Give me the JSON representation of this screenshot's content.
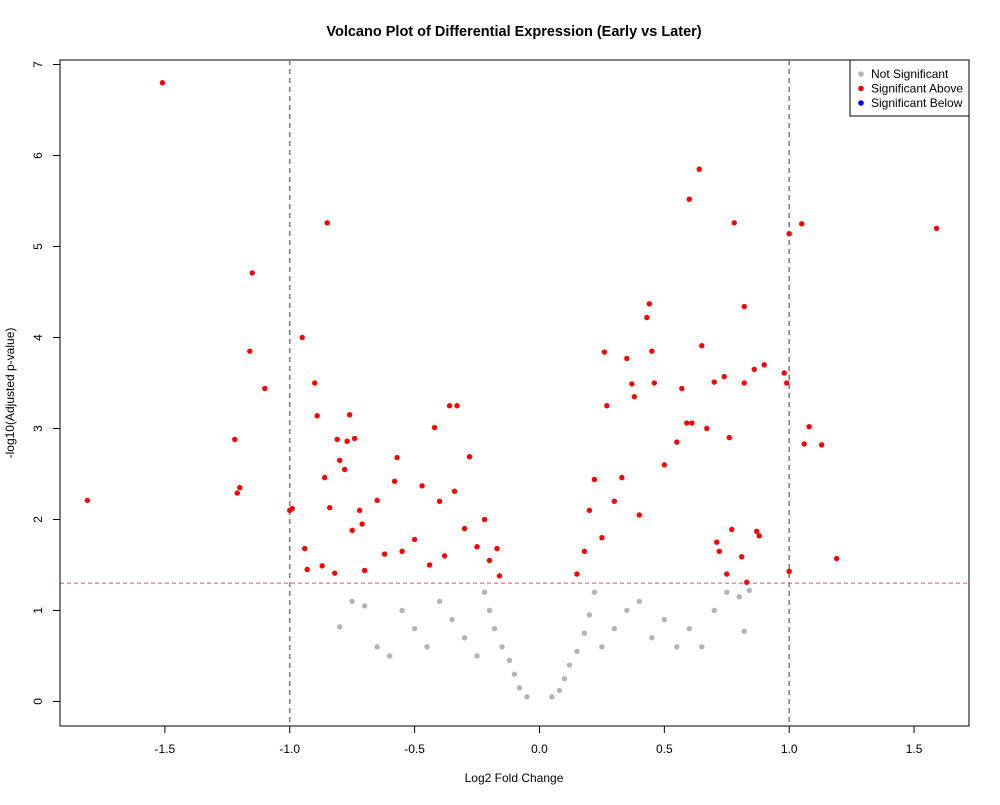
{
  "chart_data": {
    "type": "scatter",
    "title": "Volcano Plot of Differential Expression (Early vs Later)",
    "xlabel": "Log2 Fold Change",
    "ylabel": "-log10(Adjusted p-value)",
    "xlim": [
      -1.92,
      1.72
    ],
    "ylim": [
      -0.27,
      7.05
    ],
    "x_ticks": [
      -1.5,
      -1.0,
      -0.5,
      0.0,
      0.5,
      1.0,
      1.5
    ],
    "x_tick_labels": [
      "-1.5",
      "-1.0",
      "-0.5",
      "0.0",
      "0.5",
      "1.0",
      "1.5"
    ],
    "y_ticks": [
      0,
      1,
      2,
      3,
      4,
      5,
      6,
      7
    ],
    "y_tick_labels": [
      "0",
      "1",
      "2",
      "3",
      "4",
      "5",
      "6",
      "7"
    ],
    "grid": false,
    "legend_position": "top-right",
    "reference_lines": {
      "vertical": [
        -1.0,
        1.0
      ],
      "horizontal": [
        1.3
      ],
      "vertical_color": "#808080",
      "horizontal_color": "#e05555"
    },
    "series": [
      {
        "name": "Not Significant",
        "color": "#b3b3b3",
        "points": [
          [
            -0.05,
            0.05
          ],
          [
            0.05,
            0.05
          ],
          [
            -0.08,
            0.15
          ],
          [
            0.08,
            0.12
          ],
          [
            -0.1,
            0.3
          ],
          [
            0.1,
            0.25
          ],
          [
            -0.12,
            0.45
          ],
          [
            0.12,
            0.4
          ],
          [
            -0.15,
            0.6
          ],
          [
            0.15,
            0.55
          ],
          [
            -0.18,
            0.8
          ],
          [
            0.18,
            0.75
          ],
          [
            -0.2,
            1.0
          ],
          [
            0.2,
            0.95
          ],
          [
            -0.22,
            1.2
          ],
          [
            0.22,
            1.2
          ],
          [
            -0.25,
            0.5
          ],
          [
            0.25,
            0.6
          ],
          [
            -0.3,
            0.7
          ],
          [
            0.3,
            0.8
          ],
          [
            -0.35,
            0.9
          ],
          [
            0.35,
            1.0
          ],
          [
            -0.4,
            1.1
          ],
          [
            0.4,
            1.1
          ],
          [
            -0.45,
            0.6
          ],
          [
            0.45,
            0.7
          ],
          [
            -0.5,
            0.8
          ],
          [
            0.5,
            0.9
          ],
          [
            -0.55,
            1.0
          ],
          [
            0.55,
            0.6
          ],
          [
            -0.6,
            0.5
          ],
          [
            0.6,
            0.8
          ],
          [
            -0.65,
            0.6
          ],
          [
            0.65,
            0.6
          ],
          [
            -0.7,
            1.05
          ],
          [
            0.7,
            1.0
          ],
          [
            -0.75,
            1.1
          ],
          [
            0.75,
            1.2
          ],
          [
            -0.8,
            0.82
          ],
          [
            0.8,
            1.15
          ],
          [
            0.82,
            0.77
          ],
          [
            0.84,
            1.22
          ]
        ]
      },
      {
        "name": "Significant Above",
        "color": "#ff0000",
        "points": [
          [
            -1.81,
            2.21
          ],
          [
            -1.51,
            6.8
          ],
          [
            -1.22,
            2.88
          ],
          [
            -1.21,
            2.29
          ],
          [
            -1.2,
            2.35
          ],
          [
            -1.16,
            3.85
          ],
          [
            -1.15,
            4.71
          ],
          [
            -1.1,
            3.44
          ],
          [
            -1.0,
            2.1
          ],
          [
            -0.99,
            2.12
          ],
          [
            -0.95,
            4.0
          ],
          [
            -0.94,
            1.68
          ],
          [
            -0.93,
            1.45
          ],
          [
            -0.9,
            3.5
          ],
          [
            -0.89,
            3.14
          ],
          [
            -0.87,
            1.49
          ],
          [
            -0.86,
            2.46
          ],
          [
            -0.85,
            5.26
          ],
          [
            -0.84,
            2.13
          ],
          [
            -0.82,
            1.41
          ],
          [
            -0.81,
            2.88
          ],
          [
            -0.8,
            2.65
          ],
          [
            -0.78,
            2.55
          ],
          [
            -0.77,
            2.86
          ],
          [
            -0.76,
            3.15
          ],
          [
            -0.75,
            1.88
          ],
          [
            -0.74,
            2.89
          ],
          [
            -0.72,
            2.1
          ],
          [
            -0.71,
            1.95
          ],
          [
            -0.7,
            1.44
          ],
          [
            -0.65,
            2.21
          ],
          [
            -0.62,
            1.62
          ],
          [
            -0.58,
            2.42
          ],
          [
            -0.57,
            2.68
          ],
          [
            -0.55,
            1.65
          ],
          [
            -0.5,
            1.78
          ],
          [
            -0.47,
            2.37
          ],
          [
            -0.44,
            1.5
          ],
          [
            -0.42,
            3.01
          ],
          [
            -0.4,
            2.2
          ],
          [
            -0.38,
            1.6
          ],
          [
            -0.36,
            3.25
          ],
          [
            -0.34,
            2.31
          ],
          [
            -0.33,
            3.25
          ],
          [
            -0.3,
            1.9
          ],
          [
            -0.28,
            2.69
          ],
          [
            -0.25,
            1.7
          ],
          [
            -0.22,
            2.0
          ],
          [
            -0.2,
            1.55
          ],
          [
            -0.17,
            1.68
          ],
          [
            -0.16,
            1.38
          ],
          [
            0.15,
            1.4
          ],
          [
            0.18,
            1.65
          ],
          [
            0.2,
            2.1
          ],
          [
            0.22,
            2.44
          ],
          [
            0.25,
            1.8
          ],
          [
            0.26,
            3.84
          ],
          [
            0.27,
            3.25
          ],
          [
            0.3,
            2.2
          ],
          [
            0.33,
            2.46
          ],
          [
            0.35,
            3.77
          ],
          [
            0.37,
            3.49
          ],
          [
            0.38,
            3.35
          ],
          [
            0.4,
            2.05
          ],
          [
            0.43,
            4.22
          ],
          [
            0.44,
            4.37
          ],
          [
            0.45,
            3.85
          ],
          [
            0.46,
            3.5
          ],
          [
            0.5,
            2.6
          ],
          [
            0.55,
            2.85
          ],
          [
            0.57,
            3.44
          ],
          [
            0.59,
            3.06
          ],
          [
            0.6,
            5.52
          ],
          [
            0.61,
            3.06
          ],
          [
            0.64,
            5.85
          ],
          [
            0.65,
            3.91
          ],
          [
            0.67,
            3.0
          ],
          [
            0.7,
            3.51
          ],
          [
            0.71,
            1.75
          ],
          [
            0.72,
            1.65
          ],
          [
            0.74,
            3.57
          ],
          [
            0.75,
            1.4
          ],
          [
            0.76,
            2.9
          ],
          [
            0.77,
            1.89
          ],
          [
            0.78,
            5.26
          ],
          [
            0.81,
            1.59
          ],
          [
            0.82,
            4.34
          ],
          [
            0.82,
            3.5
          ],
          [
            0.83,
            1.31
          ],
          [
            0.86,
            3.65
          ],
          [
            0.87,
            1.87
          ],
          [
            0.88,
            1.82
          ],
          [
            0.9,
            3.7
          ],
          [
            0.98,
            3.61
          ],
          [
            0.99,
            3.5
          ],
          [
            1.0,
            1.43
          ],
          [
            1.0,
            5.14
          ],
          [
            1.05,
            5.25
          ],
          [
            1.06,
            2.83
          ],
          [
            1.08,
            3.02
          ],
          [
            1.13,
            2.82
          ],
          [
            1.19,
            1.57
          ],
          [
            1.59,
            5.2
          ]
        ]
      },
      {
        "name": "Significant Below",
        "color": "#0000ff",
        "points": []
      }
    ]
  }
}
